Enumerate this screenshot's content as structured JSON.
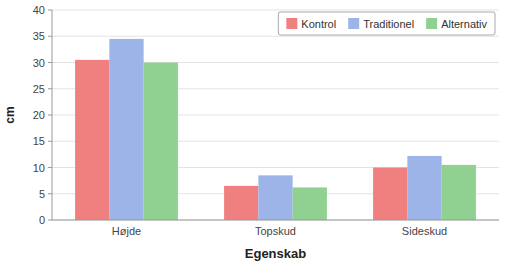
{
  "chart_data": {
    "type": "bar",
    "xlabel": "Egenskab",
    "ylabel": "cm",
    "categories": [
      "Højde",
      "Topskud",
      "Sideskud"
    ],
    "series": [
      {
        "name": "Kontrol",
        "color": "#F08080",
        "values": [
          30.5,
          6.5,
          10.0
        ]
      },
      {
        "name": "Traditionel",
        "color": "#9CB4E8",
        "values": [
          34.5,
          8.5,
          12.2
        ]
      },
      {
        "name": "Alternativ",
        "color": "#90D090",
        "values": [
          30.0,
          6.2,
          10.5
        ]
      }
    ],
    "ylim": [
      0,
      40
    ],
    "yticks": [
      0,
      5,
      10,
      15,
      20,
      25,
      30,
      35,
      40
    ],
    "grid": true,
    "legend": "upper right"
  }
}
